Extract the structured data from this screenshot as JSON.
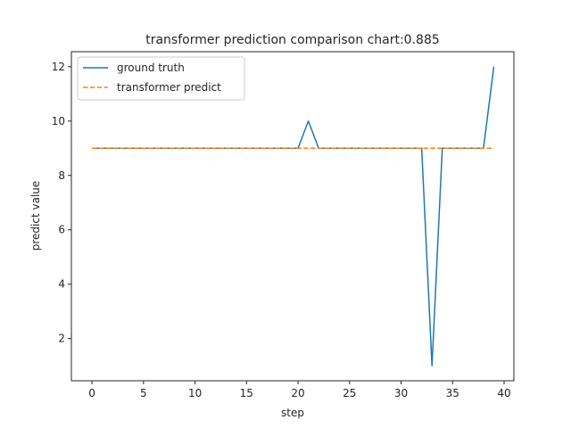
{
  "chart_data": {
    "type": "line",
    "title": "transformer prediction comparison chart:0.885",
    "xlabel": "step",
    "ylabel": "predict value",
    "xlim": [
      -2,
      40.95
    ],
    "ylim": [
      0.45,
      12.55
    ],
    "xticks": [
      0,
      5,
      10,
      15,
      20,
      25,
      30,
      35,
      40
    ],
    "yticks": [
      2,
      4,
      6,
      8,
      10,
      12
    ],
    "grid": false,
    "legend_position": "upper-left",
    "x": [
      0,
      1,
      2,
      3,
      4,
      5,
      6,
      7,
      8,
      9,
      10,
      11,
      12,
      13,
      14,
      15,
      16,
      17,
      18,
      19,
      20,
      21,
      22,
      23,
      24,
      25,
      26,
      27,
      28,
      29,
      30,
      31,
      32,
      33,
      34,
      35,
      36,
      37,
      38,
      39
    ],
    "series": [
      {
        "name": "ground truth",
        "color": "#1f77b4",
        "style": "solid",
        "values": [
          9,
          9,
          9,
          9,
          9,
          9,
          9,
          9,
          9,
          9,
          9,
          9,
          9,
          9,
          9,
          9,
          9,
          9,
          9,
          9,
          9,
          10,
          9,
          9,
          9,
          9,
          9,
          9,
          9,
          9,
          9,
          9,
          9,
          1,
          9,
          9,
          9,
          9,
          9,
          12
        ]
      },
      {
        "name": "transformer predict",
        "color": "#ff7f0e",
        "style": "dashed",
        "values": [
          9,
          9,
          9,
          9,
          9,
          9,
          9,
          9,
          9,
          9,
          9,
          9,
          9,
          9,
          9,
          9,
          9,
          9,
          9,
          9,
          9,
          9,
          9,
          9,
          9,
          9,
          9,
          9,
          9,
          9,
          9,
          9,
          9,
          9,
          9,
          9,
          9,
          9,
          9,
          9
        ]
      }
    ]
  }
}
